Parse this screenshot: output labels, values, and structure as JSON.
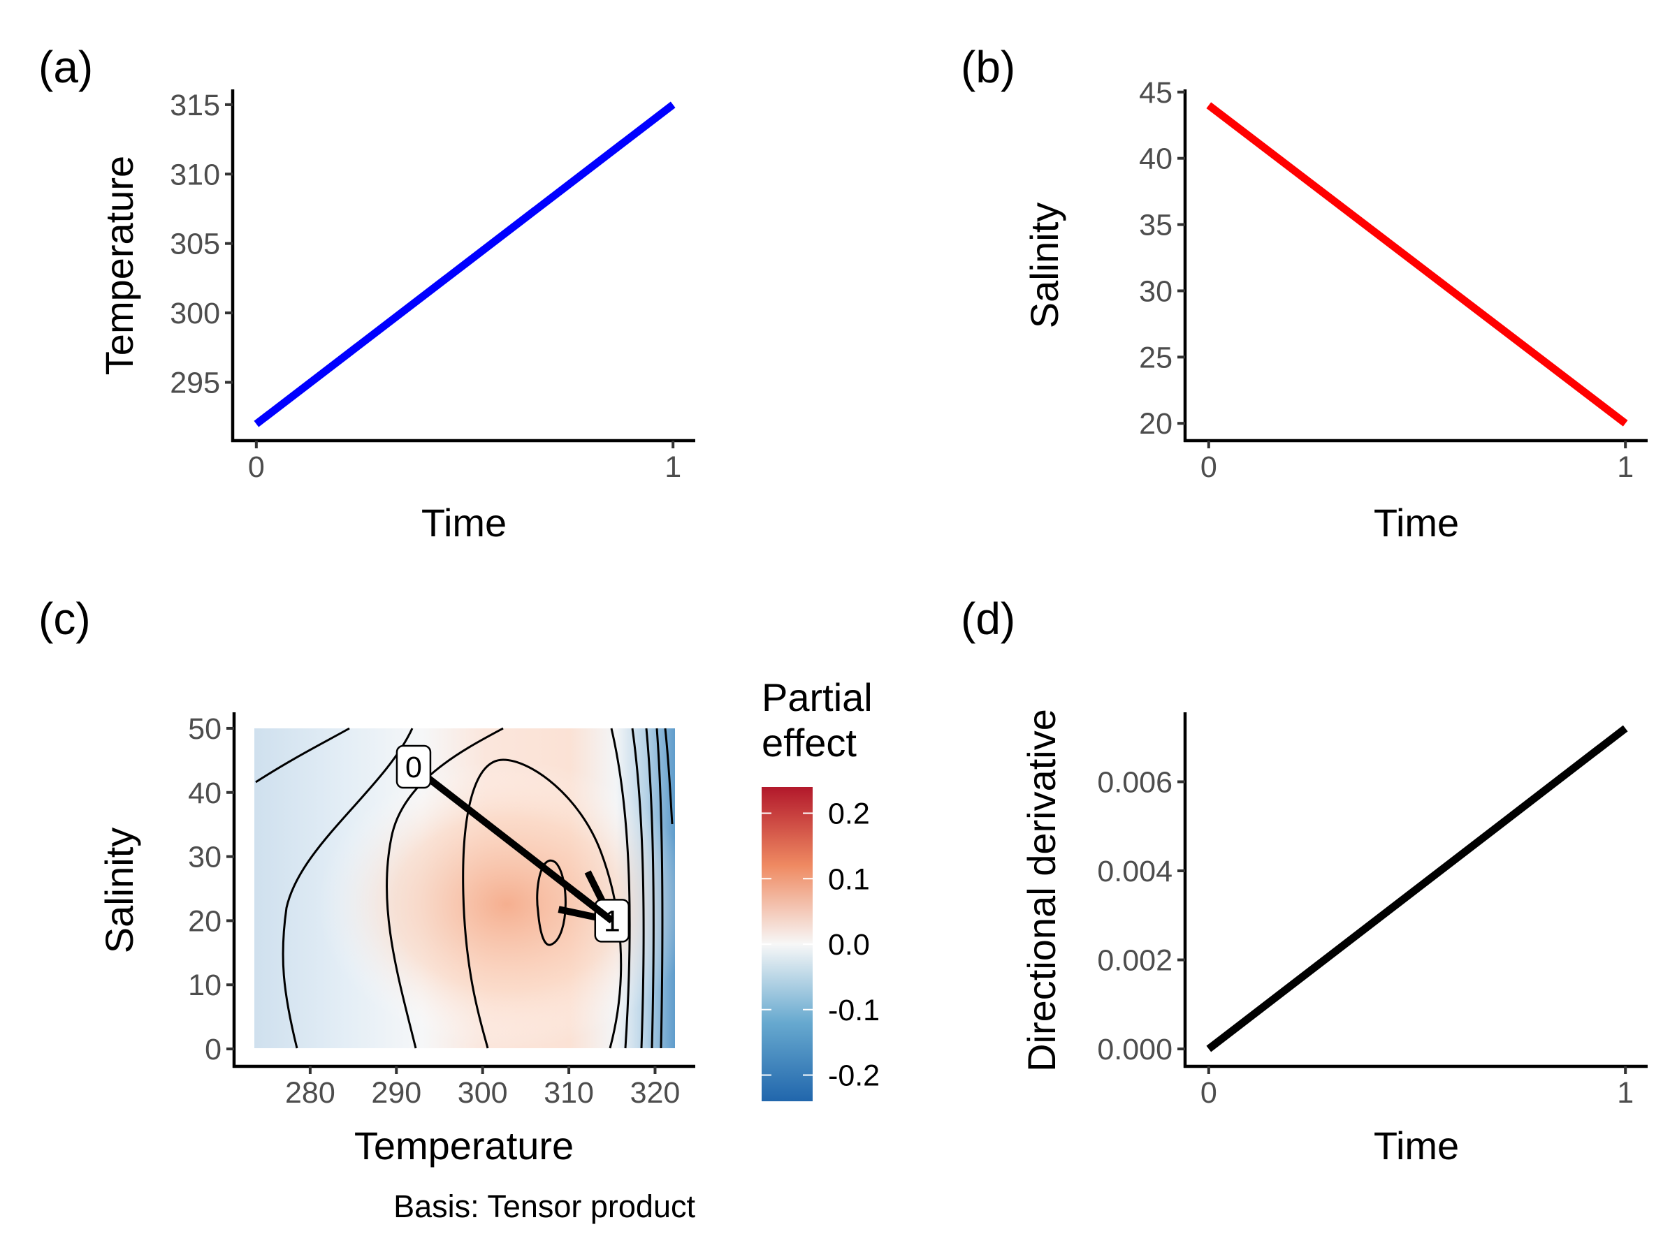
{
  "panels": [
    {
      "id": "a",
      "label": "(a)"
    },
    {
      "id": "b",
      "label": "(b)"
    },
    {
      "id": "c",
      "label": "(c)"
    },
    {
      "id": "d",
      "label": "(d)"
    }
  ],
  "chart_data": [
    {
      "panel": "(a)",
      "type": "line",
      "xlabel": "Time",
      "ylabel": "Temperature",
      "x": [
        0,
        1
      ],
      "y": [
        292,
        315
      ],
      "xlim": [
        -0.05,
        1.05
      ],
      "ylim": [
        290.9,
        316.1
      ],
      "xticks": [
        "0",
        "1"
      ],
      "yticks": [
        "295",
        "300",
        "305",
        "310",
        "315"
      ],
      "color": "#0000ff",
      "grid": false
    },
    {
      "panel": "(b)",
      "type": "line",
      "xlabel": "Time",
      "ylabel": "Salinity",
      "x": [
        0,
        1
      ],
      "y": [
        44,
        20
      ],
      "xlim": [
        -0.05,
        1.05
      ],
      "ylim": [
        18.8,
        45.2
      ],
      "xticks": [
        "0",
        "1"
      ],
      "yticks": [
        "20",
        "25",
        "30",
        "35",
        "40",
        "45"
      ],
      "color": "#ff0000",
      "grid": false
    },
    {
      "panel": "(c)",
      "type": "heatmap",
      "xlabel": "Temperature",
      "ylabel": "Salinity",
      "xlim": [
        271.5,
        324.5
      ],
      "ylim": [
        -2.5,
        52.5
      ],
      "xticks": [
        "280",
        "290",
        "300",
        "310",
        "320"
      ],
      "yticks": [
        "0",
        "10",
        "20",
        "30",
        "40",
        "50"
      ],
      "legend": {
        "title": [
          "Partial",
          "effect"
        ],
        "ticks": [
          "0.2",
          "0.1",
          "0.0",
          "-0.1",
          "-0.2"
        ],
        "range": [
          -0.24,
          0.24
        ],
        "placement": "right"
      },
      "path": {
        "start": {
          "label": "0",
          "temperature": 292,
          "salinity": 44
        },
        "end": {
          "label": "1",
          "temperature": 315,
          "salinity": 20
        }
      },
      "caption": "Basis: Tensor product",
      "grid": false
    },
    {
      "panel": "(d)",
      "type": "line",
      "xlabel": "Time",
      "ylabel": "Directional derivative",
      "x": [
        0,
        1
      ],
      "y": [
        0.0,
        0.0072
      ],
      "xlim": [
        -0.05,
        1.05
      ],
      "ylim": [
        -0.00036,
        0.00756
      ],
      "xticks": [
        "0",
        "1"
      ],
      "yticks": [
        "0.000",
        "0.002",
        "0.004",
        "0.006"
      ],
      "color": "#000000",
      "grid": false
    }
  ]
}
